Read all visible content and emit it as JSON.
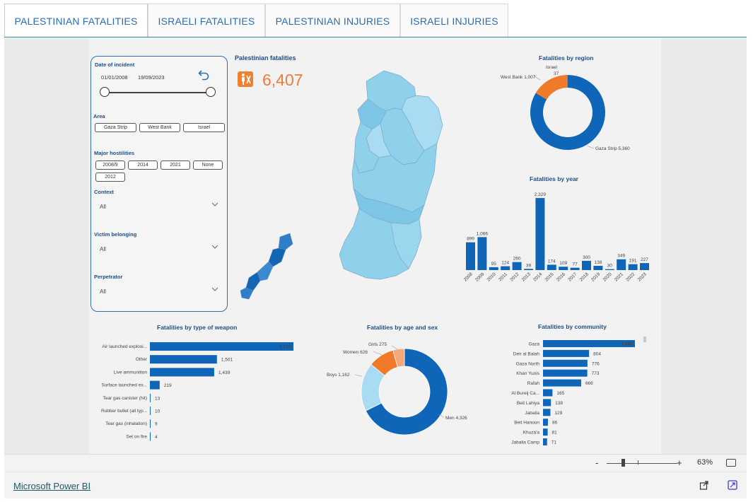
{
  "tabs": [
    {
      "label": "PALESTINIAN FATALITIES",
      "active": true
    },
    {
      "label": "ISRAELI FATALITIES",
      "active": false
    },
    {
      "label": "PALESTINIAN INJURIES",
      "active": false
    },
    {
      "label": "ISRAELI INJURIES",
      "active": false
    }
  ],
  "filters": {
    "date_title": "Date of incident",
    "date_start": "01/01/2008",
    "date_end": "19/09/2023",
    "area_title": "Area",
    "area_options": [
      "Gaza Strip",
      "West Bank",
      "Israel"
    ],
    "hostilities_title": "Major hostilities",
    "hostilities_options": [
      "2008/9",
      "2014",
      "2021",
      "None",
      "2012"
    ],
    "context_title": "Context",
    "context_value": "All",
    "victim_title": "Victim belonging",
    "victim_value": "All",
    "perpetrator_title": "Perpetrator",
    "perpetrator_value": "All"
  },
  "kpi": {
    "title": "Palestinian fatalities",
    "value": "6,407",
    "icon": "person-icon",
    "color": "#f08030"
  },
  "colors": {
    "primary": "#0f66b8",
    "orange": "#f07a2a",
    "light_blue": "#a9dcf2",
    "peach": "#f6a77a",
    "map_blue": "#8fd0ea"
  },
  "chart_data": [
    {
      "type": "pie",
      "title": "Fatalities by region",
      "slices": [
        {
          "label": "Gaza Strip",
          "value": 5360,
          "display": "Gaza Strip 5,360"
        },
        {
          "label": "West Bank",
          "value": 1007,
          "display": "West Bank 1,007"
        },
        {
          "label": "Israel",
          "value": 37,
          "display": "Israel\n37"
        }
      ]
    },
    {
      "type": "bar",
      "title": "Fatalities by year",
      "categories": [
        "2008",
        "2009",
        "2010",
        "2011",
        "2012",
        "2013",
        "2014",
        "2015",
        "2016",
        "2017",
        "2018",
        "2019",
        "2020",
        "2021",
        "2022",
        "2023"
      ],
      "values": [
        899,
        1066,
        95,
        124,
        260,
        39,
        2329,
        174,
        109,
        77,
        300,
        138,
        30,
        349,
        191,
        227
      ],
      "value_labels": [
        "899",
        "1,066",
        "95",
        "124",
        "260",
        "39",
        "2,329",
        "174",
        "109",
        "77",
        "300",
        "138",
        "30",
        "349",
        "191",
        "227"
      ]
    },
    {
      "type": "bar",
      "title": "Fatalities by type of weapon",
      "categories": [
        "Air launched explosi...",
        "Other",
        "Live ammunition",
        "Surface launched ex...",
        "Tear gas canister (hit)",
        "Rubber bullet (all typ...",
        "Tear gas (inhalation)",
        "Set on fire"
      ],
      "values": [
        3212,
        1501,
        1439,
        219,
        13,
        10,
        9,
        4
      ],
      "value_labels": [
        "3,212",
        "1,501",
        "1,439",
        "219",
        "13",
        "10",
        "9",
        "4"
      ]
    },
    {
      "type": "pie",
      "title": "Fatalities by age and sex",
      "slices": [
        {
          "label": "Men",
          "value": 4326,
          "display": "Men 4,326"
        },
        {
          "label": "Boys",
          "value": 1162,
          "display": "Boys 1,162"
        },
        {
          "label": "Women",
          "value": 626,
          "display": "Women 626"
        },
        {
          "label": "Girls",
          "value": 275,
          "display": "Girls 275"
        }
      ]
    },
    {
      "type": "bar",
      "title": "Fatalities by community",
      "categories": [
        "Gaza",
        "Deir al Balah",
        "Gaza North",
        "Khan Yunis",
        "Rafah",
        "Al Bureij Ca...",
        "Beit Lahiya",
        "Jabalia",
        "Beit Hanoun",
        "Khuza'a",
        "Jabalia Camp"
      ],
      "values": [
        1605,
        804,
        776,
        773,
        666,
        165,
        138,
        129,
        86,
        81,
        71
      ],
      "value_labels": [
        "1,605",
        "804",
        "776",
        "773",
        "666",
        "165",
        "138",
        "129",
        "86",
        "81",
        "71"
      ]
    }
  ],
  "zoom": {
    "minus": "-",
    "plus": "+",
    "percent": "63%"
  },
  "footer": {
    "link": "Microsoft Power BI"
  }
}
